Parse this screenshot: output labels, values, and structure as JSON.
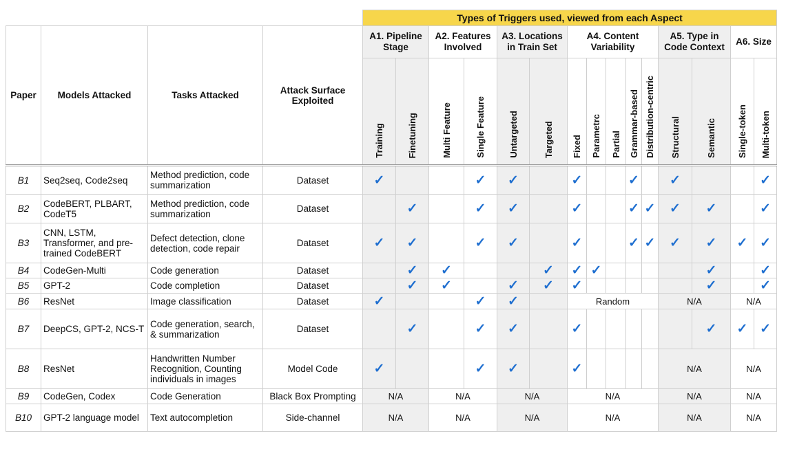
{
  "title": "Types of Triggers used, viewed from each Aspect",
  "left_headers": {
    "paper": "Paper",
    "models": "Models Attacked",
    "tasks": "Tasks Attacked",
    "surface": "Attack Surface Exploited"
  },
  "aspects": [
    {
      "name": "A1. Pipeline Stage",
      "subs": [
        "Training",
        "Finetuning"
      ]
    },
    {
      "name": "A2. Features Involved",
      "subs": [
        "Multi Feature",
        "Single Feature"
      ]
    },
    {
      "name": "A3. Locations in Train Set",
      "subs": [
        "Untargeted",
        "Targeted"
      ]
    },
    {
      "name": "A4. Content Variability",
      "subs": [
        "Fixed",
        "Parametrc",
        "Partial",
        "Grammar-based",
        "Distribution-centric"
      ]
    },
    {
      "name": "A5. Type in Code Context",
      "subs": [
        "Structural",
        "Semantic"
      ]
    },
    {
      "name": "A6. Size",
      "subs": [
        "Single-token",
        "Multi-token"
      ]
    }
  ],
  "check_mark": "✓",
  "rows": [
    {
      "paper": "B1",
      "models": "Seq2seq, Code2seq",
      "tasks": "Method prediction, code summarization",
      "surface": "Dataset",
      "cells": [
        "✓",
        "",
        "",
        "✓",
        "✓",
        "",
        "✓",
        "",
        "",
        "✓",
        "",
        "✓",
        "",
        "",
        "✓"
      ]
    },
    {
      "paper": "B2",
      "models": "CodeBERT, PLBART, CodeT5",
      "tasks": "Method prediction, code summarization",
      "surface": "Dataset",
      "cells": [
        "",
        "✓",
        "",
        "✓",
        "✓",
        "",
        "✓",
        "",
        "",
        "✓",
        "✓",
        "✓",
        "✓",
        "",
        "✓"
      ]
    },
    {
      "paper": "B3",
      "models": "CNN, LSTM, Transformer, and pre-trained CodeBERT",
      "tasks": "Defect detection, clone detection, code repair",
      "surface": "Dataset",
      "cells": [
        "✓",
        "✓",
        "",
        "✓",
        "✓",
        "",
        "✓",
        "",
        "",
        "✓",
        "✓",
        "✓",
        "✓",
        "✓",
        "✓"
      ]
    },
    {
      "paper": "B4",
      "models": "CodeGen-Multi",
      "tasks": "Code generation",
      "surface": "Dataset",
      "cells": [
        "",
        "✓",
        "✓",
        "",
        "",
        "✓",
        "✓",
        "✓",
        "",
        "",
        "",
        "",
        "✓",
        "",
        "✓"
      ]
    },
    {
      "paper": "B5",
      "models": "GPT-2",
      "tasks": "Code completion",
      "surface": "Dataset",
      "cells": [
        "",
        "✓",
        "✓",
        "",
        "✓",
        "✓",
        "✓",
        "",
        "",
        "",
        "",
        "",
        "✓",
        "",
        "✓"
      ]
    },
    {
      "paper": "B6",
      "models": "ResNet",
      "tasks": "Image classification",
      "surface": "Dataset",
      "cells": [
        "✓",
        "",
        "",
        "✓",
        "✓",
        ""
      ],
      "tail": [
        "Random",
        "N/A",
        "N/A"
      ]
    },
    {
      "paper": "B7",
      "models": "DeepCS, GPT-2, NCS-T",
      "tasks": "Code generation, search, & summarization",
      "surface": "Dataset",
      "cells": [
        "",
        "✓",
        "",
        "✓",
        "✓",
        "",
        "✓",
        "",
        "",
        "",
        "",
        "",
        "✓",
        "✓",
        "✓"
      ]
    },
    {
      "paper": "B8",
      "models": "ResNet",
      "tasks": "Handwritten Number Recognition, Counting individuals in images",
      "surface": "Model Code",
      "cells": [
        "✓",
        "",
        "",
        "✓",
        "✓",
        "",
        "✓",
        "",
        "",
        "",
        ""
      ],
      "tail2": [
        "N/A",
        "N/A"
      ]
    },
    {
      "paper": "B9",
      "models": "CodeGen, Codex",
      "tasks": "Code Generation",
      "surface": "Black Box Prompting",
      "na": [
        "N/A",
        "N/A",
        "N/A",
        "N/A",
        "N/A",
        "N/A"
      ]
    },
    {
      "paper": "B10",
      "models": "GPT-2 language model",
      "tasks": "Text autocompletion",
      "surface": "Side-channel",
      "na": [
        "N/A",
        "N/A",
        "N/A",
        "N/A",
        "N/A",
        "N/A"
      ]
    }
  ]
}
